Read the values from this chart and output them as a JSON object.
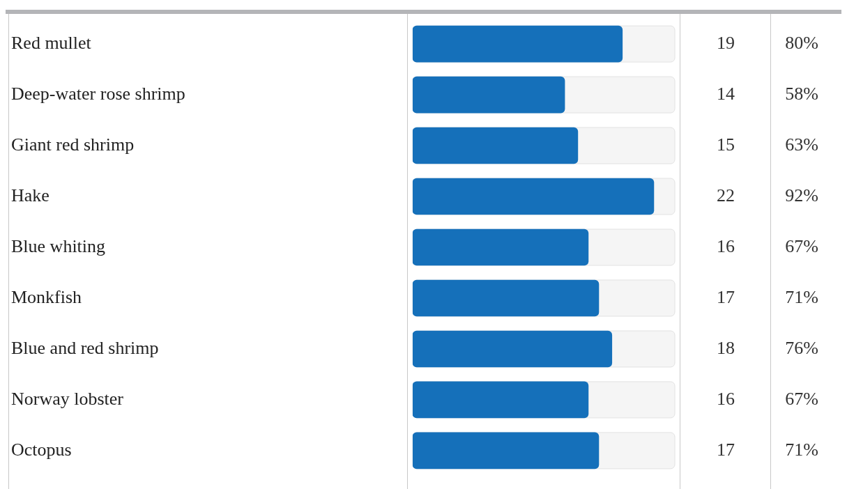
{
  "chart_data": {
    "type": "bar",
    "orientation": "horizontal",
    "categories": [
      "Red mullet",
      "Deep-water rose shrimp",
      "Giant red shrimp",
      "Hake",
      "Blue whiting",
      "Monkfish",
      "Blue and red shrimp",
      "Norway lobster",
      "Octopus"
    ],
    "values": [
      80,
      58,
      63,
      92,
      67,
      71,
      76,
      67,
      71
    ],
    "value_labels": [
      "80%",
      "58%",
      "63%",
      "92%",
      "67%",
      "71%",
      "76%",
      "67%",
      "71%"
    ],
    "color": "#1570ba",
    "xlim": [
      0,
      100
    ],
    "tick_labels": "y",
    "legend": false,
    "annotations": [
      "19",
      "14",
      "15",
      "22",
      "16",
      "17",
      "18",
      "16",
      "17"
    ]
  }
}
